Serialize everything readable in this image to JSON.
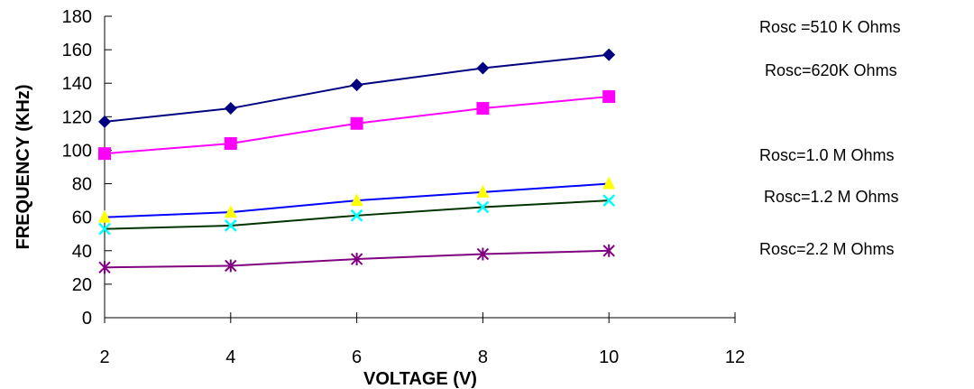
{
  "chart_data": {
    "type": "line",
    "xlabel": "VOLTAGE (V)",
    "ylabel": "FREQUENCY (KHz)",
    "xlim": [
      2,
      12
    ],
    "ylim": [
      0,
      180
    ],
    "x_ticks": [
      2,
      4,
      6,
      8,
      10,
      12
    ],
    "y_ticks": [
      0,
      20,
      40,
      60,
      80,
      100,
      120,
      140,
      160,
      180
    ],
    "grid": false,
    "legend_placement": "right",
    "series": [
      {
        "name": "Rosc =510 K Ohms",
        "color": "#000080",
        "marker": "diamond",
        "marker_color": "#000080",
        "x": [
          2,
          4,
          6,
          8,
          10
        ],
        "y": [
          117,
          125,
          139,
          149,
          157
        ]
      },
      {
        "name": "Rosc=620K Ohms",
        "color": "#ff00ff",
        "marker": "square",
        "marker_color": "#ff00ff",
        "x": [
          2,
          4,
          6,
          8,
          10
        ],
        "y": [
          98,
          104,
          116,
          125,
          132
        ]
      },
      {
        "name": "Rosc=1.0 M Ohms",
        "color": "#0000ff",
        "marker": "triangle",
        "marker_color": "#ffff00",
        "x": [
          2,
          4,
          6,
          8,
          10
        ],
        "y": [
          60,
          63,
          70,
          75,
          80
        ]
      },
      {
        "name": "Rosc=1.2 M Ohms",
        "color": "#003300",
        "marker": "x",
        "marker_color": "#00ffff",
        "x": [
          2,
          4,
          6,
          8,
          10
        ],
        "y": [
          53,
          55,
          61,
          66,
          70
        ]
      },
      {
        "name": "Rosc=2.2  M Ohms",
        "color": "#800080",
        "marker": "asterisk",
        "marker_color": "#800080",
        "x": [
          2,
          4,
          6,
          8,
          10
        ],
        "y": [
          30,
          31,
          35,
          38,
          40
        ]
      }
    ]
  }
}
